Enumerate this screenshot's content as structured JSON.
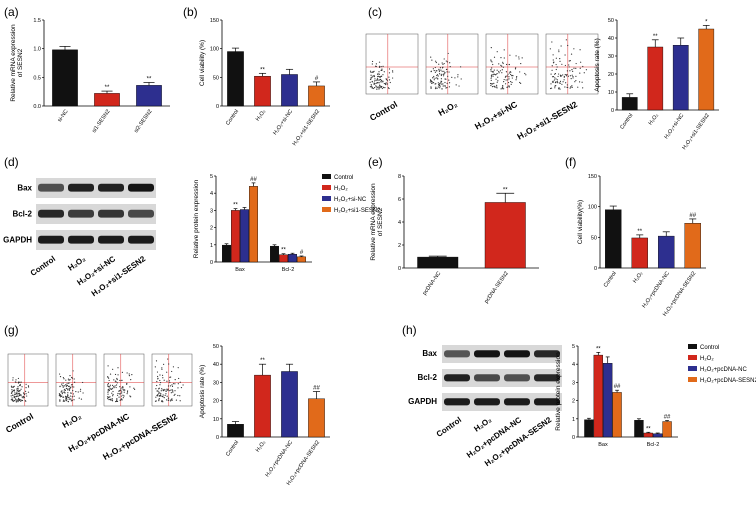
{
  "colors": {
    "black": "#111111",
    "red": "#d1271c",
    "blue": "#2d2f8f",
    "orange": "#e16a1a"
  },
  "panels": [
    {
      "id": "a",
      "label": "(a)"
    },
    {
      "id": "b",
      "label": "(b)"
    },
    {
      "id": "c",
      "label": "(c)"
    },
    {
      "id": "d",
      "label": "(d)"
    },
    {
      "id": "e",
      "label": "(e)"
    },
    {
      "id": "f",
      "label": "(f)"
    },
    {
      "id": "g",
      "label": "(g)"
    },
    {
      "id": "h",
      "label": "(h)"
    }
  ],
  "blots": {
    "d": {
      "rows": [
        "Bax",
        "Bcl-2",
        "GAPDH"
      ],
      "lanes": [
        "Control",
        "H₂O₂",
        "H₂O₂+si-NC",
        "H₂O₂+si1-SESN2"
      ]
    },
    "h": {
      "rows": [
        "Bax",
        "Bcl-2",
        "GAPDH"
      ],
      "lanes": [
        "Control",
        "H₂O₂",
        "H₂O₂+pcDNA-NC",
        "H₂O₂+pcDNA-SESN2"
      ]
    }
  },
  "flow": {
    "c": [
      "Control",
      "H₂O₂",
      "H₂O₂+si-NC",
      "H₂O₂+si1-SESN2"
    ],
    "g": [
      "Control",
      "H₂O₂",
      "H₂O₂+pcDNA-NC",
      "H₂O₂+pcDNA-SESN2"
    ]
  },
  "chart_data": [
    {
      "panel": "a",
      "type": "bar",
      "ylabel": "Relative mRNA expression of SESN2",
      "ylim": [
        0,
        1.5
      ],
      "yticks": [
        0.0,
        0.5,
        1.0,
        1.5
      ],
      "categories": [
        "si-NC",
        "si1-SESN2",
        "si2-SESN2"
      ],
      "values": [
        0.98,
        0.22,
        0.36
      ],
      "errors": [
        0.06,
        0.04,
        0.05
      ],
      "sig": [
        "",
        "**",
        "**"
      ],
      "colors": [
        "#111111",
        "#d1271c",
        "#2d2f8f"
      ],
      "grid": false
    },
    {
      "panel": "b",
      "type": "bar",
      "ylabel": "Cell viability (%)",
      "ylim": [
        0,
        150
      ],
      "yticks": [
        0,
        50,
        100,
        150
      ],
      "categories": [
        "Control",
        "H₂O₂",
        "H₂O₂+si-NC",
        "H₂O₂+si1-SESN2"
      ],
      "values": [
        95,
        52,
        55,
        35
      ],
      "errors": [
        6,
        5,
        9,
        7
      ],
      "sig": [
        "",
        "**",
        "",
        "#"
      ],
      "colors": [
        "#111111",
        "#d1271c",
        "#2d2f8f",
        "#e16a1a"
      ],
      "grid": false
    },
    {
      "panel": "c",
      "type": "bar",
      "ylabel": "Apoptosis rate (%)",
      "ylim": [
        0,
        50
      ],
      "yticks": [
        0,
        10,
        20,
        30,
        40,
        50
      ],
      "categories": [
        "Control",
        "H₂O₂",
        "H₂O₂+si-NC",
        "H₂O₂+si1-SESN2"
      ],
      "values": [
        7,
        35,
        36,
        45
      ],
      "errors": [
        2,
        4,
        4,
        2
      ],
      "sig": [
        "",
        "**",
        "",
        "*"
      ],
      "colors": [
        "#111111",
        "#d1271c",
        "#2d2f8f",
        "#e16a1a"
      ],
      "grid": false
    },
    {
      "panel": "d",
      "type": "bar",
      "ylabel": "Relative protein expression",
      "ylim": [
        0,
        5
      ],
      "yticks": [
        0,
        1,
        2,
        3,
        4,
        5
      ],
      "categories": [
        "Bax",
        "Bcl-2"
      ],
      "series": [
        {
          "name": "Control",
          "values": [
            0.98,
            0.92
          ],
          "errors": [
            0.08,
            0.08
          ],
          "sig": [
            "",
            ""
          ]
        },
        {
          "name": "H₂O₂",
          "values": [
            3.0,
            0.42
          ],
          "errors": [
            0.1,
            0.06
          ],
          "sig": [
            "**",
            "**"
          ]
        },
        {
          "name": "H₂O₂+si-NC",
          "values": [
            3.05,
            0.45
          ],
          "errors": [
            0.12,
            0.06
          ],
          "sig": [
            "",
            ""
          ]
        },
        {
          "name": "H₂O₂+si1-SESN2",
          "values": [
            4.4,
            0.3
          ],
          "errors": [
            0.2,
            0.05
          ],
          "sig": [
            "##",
            "#"
          ]
        }
      ],
      "colors": [
        "#111111",
        "#d1271c",
        "#2d2f8f",
        "#e16a1a"
      ],
      "legend": "top-right",
      "grid": false
    },
    {
      "panel": "e",
      "type": "bar",
      "ylabel": "Relative mRNA expression of SESN2",
      "ylim": [
        0,
        8
      ],
      "yticks": [
        0,
        2,
        4,
        6,
        8
      ],
      "categories": [
        "pcDNA-NC",
        "pcDNA-SESN2"
      ],
      "values": [
        0.95,
        5.7
      ],
      "errors": [
        0.08,
        0.8
      ],
      "sig": [
        "",
        "**"
      ],
      "colors": [
        "#111111",
        "#d1271c"
      ],
      "grid": false
    },
    {
      "panel": "f",
      "type": "bar",
      "ylabel": "Cell viability(%)",
      "ylim": [
        0,
        150
      ],
      "yticks": [
        0,
        50,
        100,
        150
      ],
      "categories": [
        "Control",
        "H₂O₂",
        "H₂O₂+pcDNA-NC",
        "H₂O₂+pcDNA-SESN2"
      ],
      "values": [
        95,
        49,
        52,
        73
      ],
      "errors": [
        6,
        5,
        7,
        7
      ],
      "sig": [
        "",
        "**",
        "",
        "##"
      ],
      "colors": [
        "#111111",
        "#d1271c",
        "#2d2f8f",
        "#e16a1a"
      ],
      "grid": false
    },
    {
      "panel": "g",
      "type": "bar",
      "ylabel": "Apoptosis rate (%)",
      "ylim": [
        0,
        50
      ],
      "yticks": [
        0,
        10,
        20,
        30,
        40,
        50
      ],
      "categories": [
        "Control",
        "H₂O₂",
        "H₂O₂+pcDNA-NC",
        "H₂O₂+pcDNA-SESN2"
      ],
      "values": [
        7,
        34,
        36,
        21
      ],
      "errors": [
        1.5,
        6,
        4,
        4
      ],
      "sig": [
        "",
        "**",
        "",
        "##"
      ],
      "colors": [
        "#111111",
        "#d1271c",
        "#2d2f8f",
        "#e16a1a"
      ],
      "grid": false
    },
    {
      "panel": "h",
      "type": "bar",
      "ylabel": "Relative protein expression",
      "ylim": [
        0,
        5
      ],
      "yticks": [
        0,
        1,
        2,
        3,
        4,
        5
      ],
      "categories": [
        "Bax",
        "Bcl-2"
      ],
      "series": [
        {
          "name": "Control",
          "values": [
            0.95,
            0.92
          ],
          "errors": [
            0.08,
            0.08
          ],
          "sig": [
            "",
            ""
          ]
        },
        {
          "name": "H₂O₂",
          "values": [
            4.5,
            0.22
          ],
          "errors": [
            0.15,
            0.04
          ],
          "sig": [
            "**",
            "**"
          ]
        },
        {
          "name": "H₂O₂+pcDNA-NC",
          "values": [
            4.05,
            0.18
          ],
          "errors": [
            0.35,
            0.04
          ],
          "sig": [
            "",
            ""
          ]
        },
        {
          "name": "H₂O₂+pcDNA-SESN2",
          "values": [
            2.45,
            0.85
          ],
          "errors": [
            0.12,
            0.06
          ],
          "sig": [
            "##",
            "##"
          ]
        }
      ],
      "colors": [
        "#111111",
        "#d1271c",
        "#2d2f8f",
        "#e16a1a"
      ],
      "legend": "top-right",
      "grid": false
    }
  ]
}
